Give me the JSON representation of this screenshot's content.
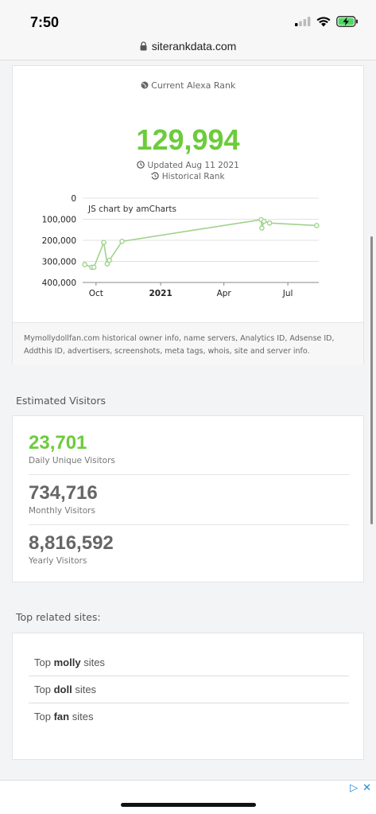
{
  "status_bar": {
    "time": "7:50",
    "battery_charging": true
  },
  "url_bar": {
    "url": "siterankdata.com"
  },
  "rank": {
    "header": "Current Alexa Rank",
    "value": "129,994",
    "updated": "Updated Aug 11 2021",
    "historical_label": "Historical Rank",
    "description": "Mymollydollfan.com historical owner info, name servers, Analytics ID, Adsense ID, Addthis ID, advertisers, screenshots, meta tags, whois, site and server info."
  },
  "chart_data": {
    "type": "line",
    "watermark": "JS chart by amCharts",
    "y_tick_labels": [
      "0",
      "100,000",
      "200,000",
      "300,000",
      "400,000"
    ],
    "y_ticks": [
      0,
      100000,
      200000,
      300000,
      400000
    ],
    "ylim": [
      0,
      400000
    ],
    "y_reversed": true,
    "x_tick_labels": [
      "Oct",
      "2021",
      "Apr",
      "Jul"
    ],
    "x_ticks": [
      "2020-10-01",
      "2021-01-01",
      "2021-04-01",
      "2021-07-01"
    ],
    "xlim": [
      "2020-09-12",
      "2021-08-14"
    ],
    "grid": true,
    "color": "#9fd38b",
    "series": [
      {
        "x": [
          "2020-09-15",
          "2020-09-25",
          "2020-09-28",
          "2020-10-12",
          "2020-10-17",
          "2020-10-20",
          "2020-11-07",
          "2021-05-24",
          "2021-05-25",
          "2021-05-28",
          "2021-06-05",
          "2021-08-11"
        ],
        "values": [
          315000,
          328000,
          328000,
          210000,
          312000,
          295000,
          205000,
          102000,
          142000,
          110000,
          118000,
          129994
        ]
      }
    ]
  },
  "visitors": {
    "section_title": "Estimated Visitors",
    "daily": {
      "value": "23,701",
      "label": "Daily Unique Visitors"
    },
    "monthly": {
      "value": "734,716",
      "label": "Monthly Visitors"
    },
    "yearly": {
      "value": "8,816,592",
      "label": "Yearly Visitors"
    }
  },
  "related": {
    "section_title": "Top related sites:",
    "items": [
      {
        "prefix": "Top",
        "keyword": "molly",
        "suffix": "sites"
      },
      {
        "prefix": "Top",
        "keyword": "doll",
        "suffix": "sites"
      },
      {
        "prefix": "Top",
        "keyword": "fan",
        "suffix": "sites"
      }
    ]
  },
  "ad": {
    "adchoices": "▷",
    "close": "✕"
  },
  "colors": {
    "accent_green": "#6ccb3b",
    "link_blue": "#1e8ad8"
  }
}
